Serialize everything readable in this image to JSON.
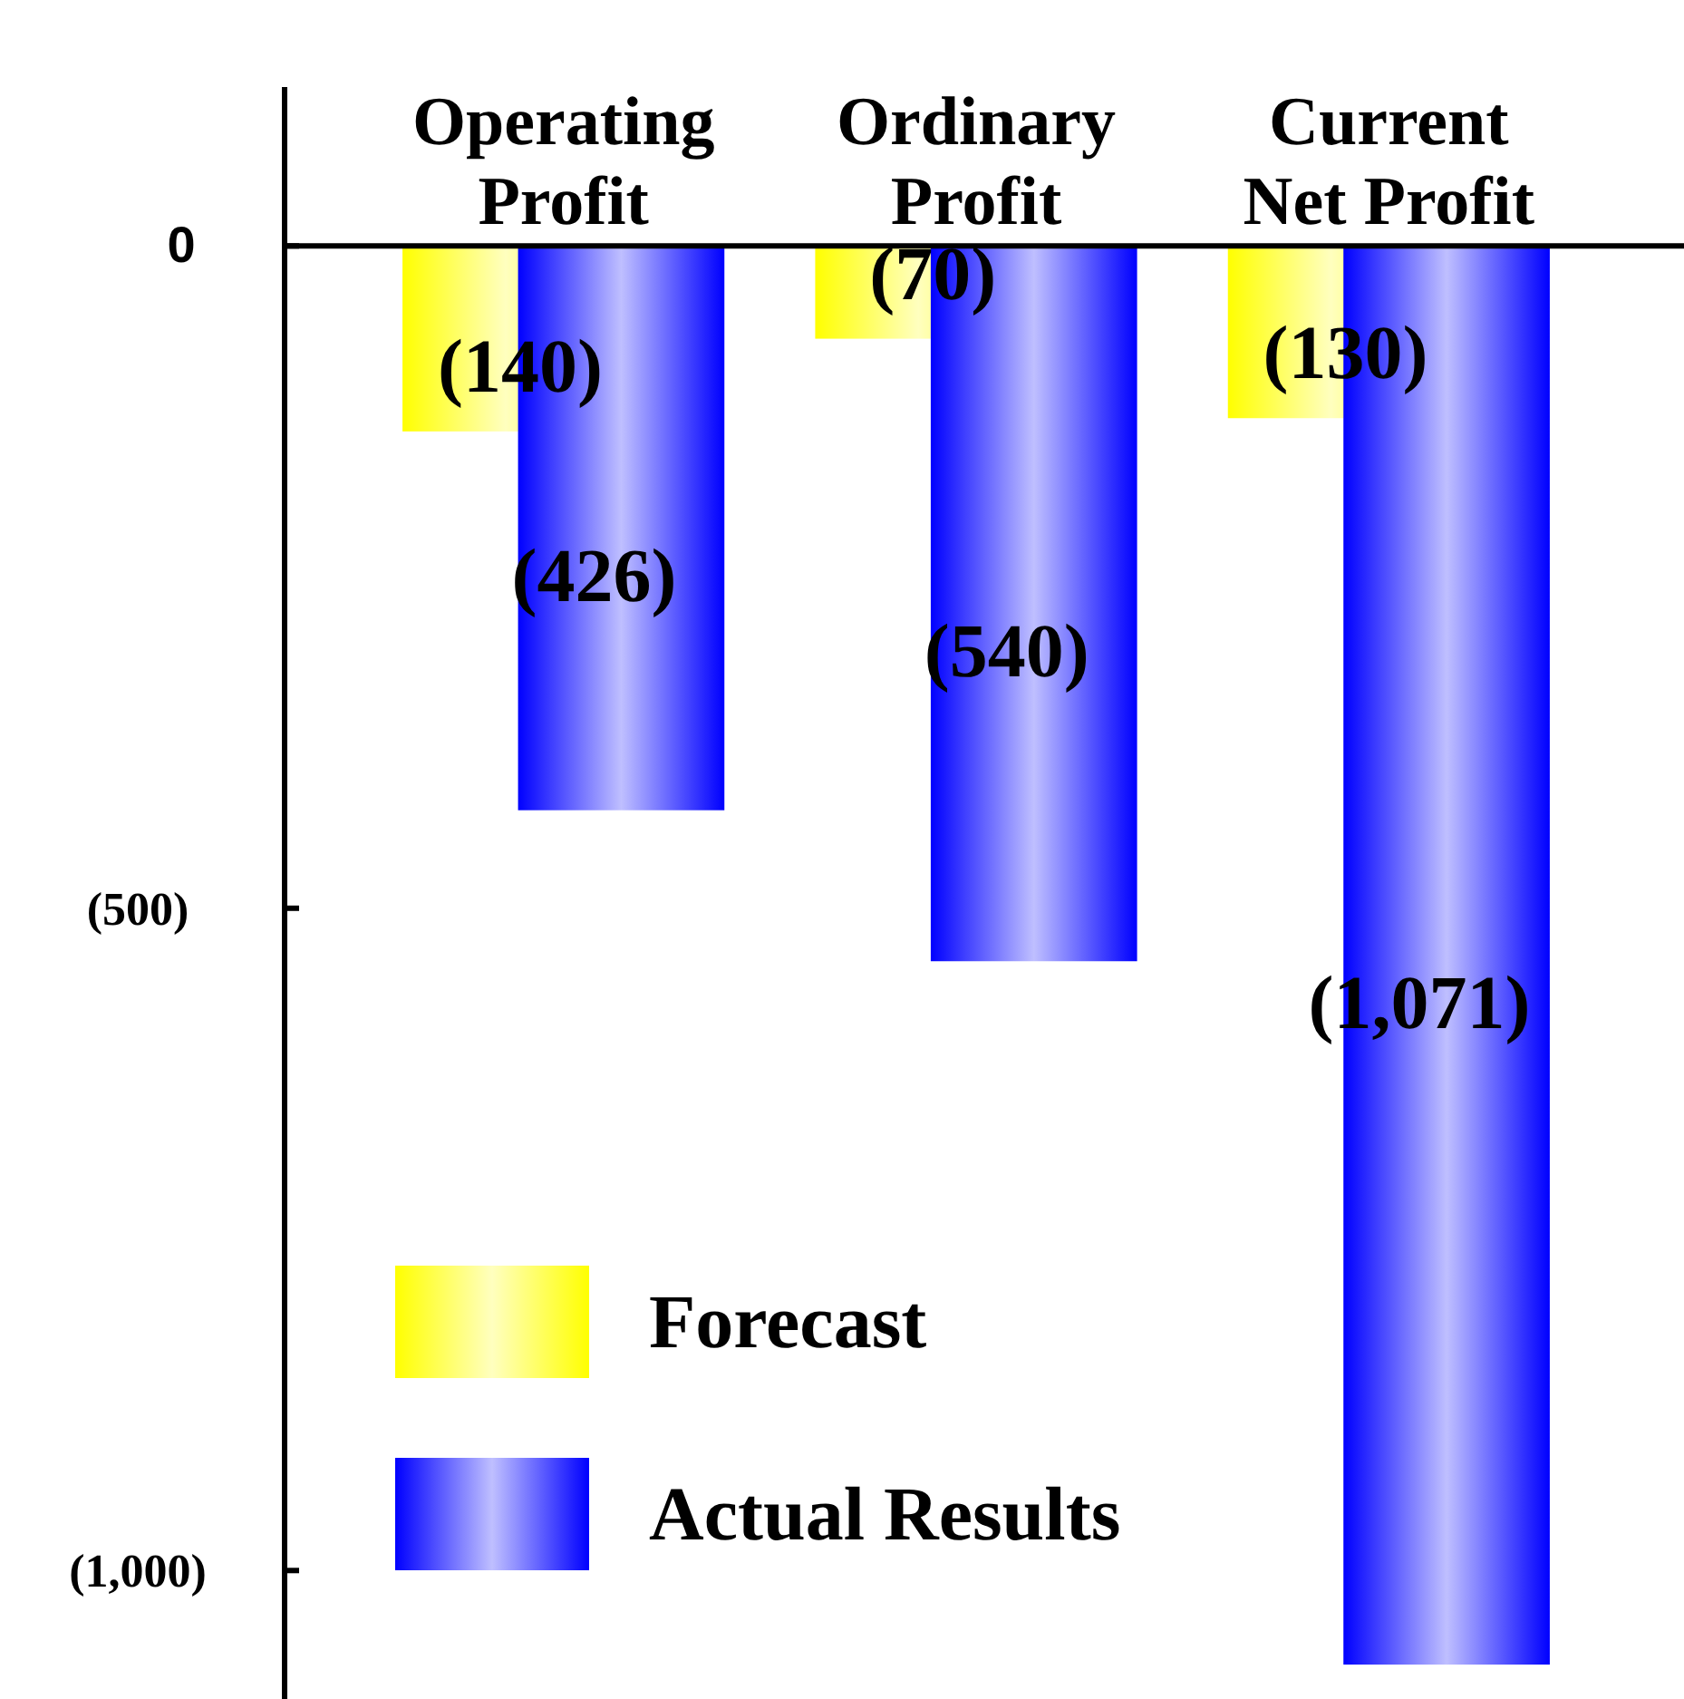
{
  "chart_data": {
    "type": "bar",
    "categories": [
      "Operating Profit",
      "Ordinary Profit",
      "Current Net Profit"
    ],
    "series": [
      {
        "name": "Forecast",
        "color": "#ffff00",
        "values": [
          -140,
          -70,
          -130
        ],
        "value_labels": [
          "(140)",
          "(70)",
          "(130)"
        ]
      },
      {
        "name": "Actual Results",
        "color": "#0000ff",
        "values": [
          -426,
          -540,
          -1071
        ],
        "value_labels": [
          "(426)",
          "(540)",
          "(1,071)"
        ]
      }
    ],
    "ylim": [
      -1097,
      120
    ],
    "yticks": [
      {
        "value": 0,
        "label": "0"
      },
      {
        "value": -500,
        "label": "(500)"
      },
      {
        "value": -1000,
        "label": "(1,000)"
      }
    ],
    "grid": false,
    "legend": "bottom left"
  }
}
